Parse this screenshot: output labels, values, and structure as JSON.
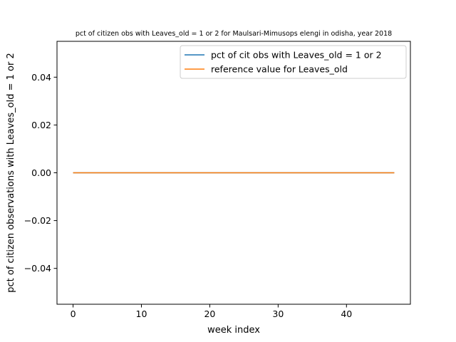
{
  "chart_data": {
    "type": "line",
    "title": "pct of citizen obs with Leaves_old = 1 or 2 for Maulsari-Mimusops elengi in odisha, year 2018",
    "xlabel": "week index",
    "ylabel": "pct of citizen observations with Leaves_old = 1 or 2",
    "xlim": [
      -2.35,
      49.35
    ],
    "ylim": [
      -0.055,
      0.055
    ],
    "x_ticks": [
      0,
      10,
      20,
      30,
      40
    ],
    "x_tick_labels": [
      "0",
      "10",
      "20",
      "30",
      "40"
    ],
    "y_ticks": [
      -0.04,
      -0.02,
      0.0,
      0.02,
      0.04
    ],
    "y_tick_labels": [
      "−0.04",
      "−0.02",
      "0.00",
      "0.02",
      "0.04"
    ],
    "grid": false,
    "legend_position": "top-right",
    "series": [
      {
        "name": "pct of cit obs with Leaves_old = 1 or 2",
        "color": "#1f77b4",
        "x_range": [
          0,
          47
        ],
        "value": 0
      },
      {
        "name": "reference value for Leaves_old",
        "color": "#ff7f0e",
        "x_range": [
          0,
          47
        ],
        "value": 0
      }
    ]
  }
}
